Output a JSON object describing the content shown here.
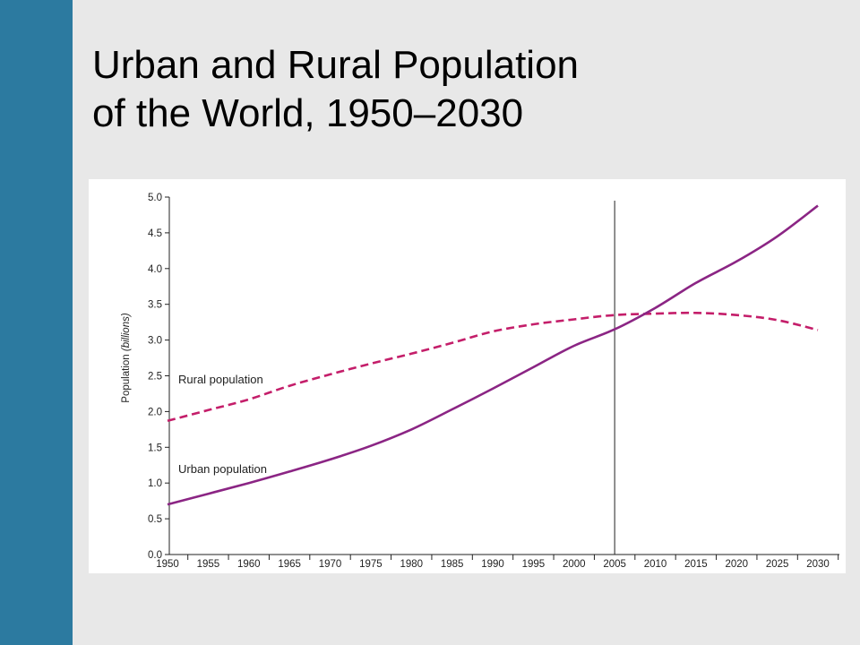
{
  "slide": {
    "title_line1": "Urban and Rural Population",
    "title_line2": "of the World, 1950–2030",
    "accent_bar_color": "#2c7aa0"
  },
  "chart_data": {
    "type": "line",
    "xlabel": "",
    "ylabel_main": "Population ",
    "ylabel_unit": "(billions)",
    "ylim": [
      0,
      5
    ],
    "xlim": [
      1950,
      2030
    ],
    "yticks": [
      "0.0",
      "0.5",
      "1.0",
      "1.5",
      "2.0",
      "2.5",
      "3.0",
      "3.5",
      "4.0",
      "4.5",
      "5.0"
    ],
    "xticks": [
      "1950",
      "1955",
      "1960",
      "1965",
      "1970",
      "1975",
      "1980",
      "1985",
      "1990",
      "1995",
      "2000",
      "2005",
      "2010",
      "2015",
      "2020",
      "2025",
      "2030"
    ],
    "reference_line_x": 2005,
    "grid": false,
    "legend": "none",
    "series": [
      {
        "name": "Rural population",
        "style": "dashed",
        "color": "#c41e6a",
        "x": [
          1950,
          1955,
          1960,
          1965,
          1970,
          1975,
          1980,
          1985,
          1990,
          1995,
          2000,
          2005,
          2010,
          2015,
          2020,
          2025,
          2030
        ],
        "values": [
          1.87,
          2.02,
          2.17,
          2.36,
          2.52,
          2.67,
          2.81,
          2.96,
          3.12,
          3.22,
          3.29,
          3.35,
          3.37,
          3.38,
          3.35,
          3.28,
          3.14
        ]
      },
      {
        "name": "Urban population",
        "style": "solid",
        "color": "#8b2584",
        "x": [
          1950,
          1955,
          1960,
          1965,
          1970,
          1975,
          1980,
          1985,
          1990,
          1995,
          2000,
          2005,
          2010,
          2015,
          2020,
          2025,
          2030
        ],
        "values": [
          0.7,
          0.85,
          1.0,
          1.16,
          1.33,
          1.52,
          1.75,
          2.03,
          2.32,
          2.62,
          2.92,
          3.15,
          3.45,
          3.8,
          4.1,
          4.45,
          4.88
        ]
      }
    ]
  }
}
